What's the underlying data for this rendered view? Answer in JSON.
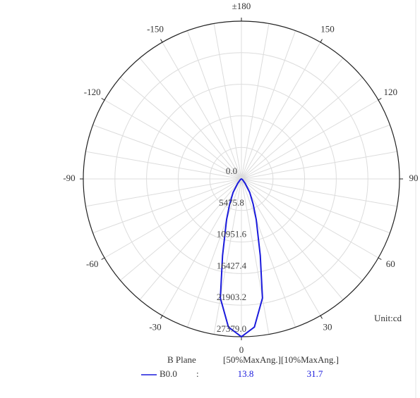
{
  "chart_data": {
    "type": "polar",
    "rlim": [
      0,
      27379
    ],
    "rticks": [
      {
        "value": 0,
        "label": "0.0"
      },
      5475.8,
      10951.6,
      16427.4,
      21903.2,
      {
        "value": 27379,
        "label": "27379.0"
      }
    ],
    "thetaticks": [
      0,
      30,
      60,
      90,
      120,
      150,
      {
        "value": 180,
        "label": "±180"
      },
      -150,
      -120,
      -90,
      -60,
      -30
    ],
    "series": [
      {
        "name": "B0.0",
        "color": "#1a1adc",
        "theta": [
          -90,
          -60,
          -40,
          -31.7,
          -25,
          -20,
          -13.8,
          -10,
          -5,
          0,
          5,
          10,
          13.8,
          20,
          25,
          31.7,
          40,
          60,
          90
        ],
        "values": [
          0,
          200,
          1000,
          2738,
          4800,
          7500,
          13690,
          21000,
          25800,
          27379,
          25800,
          21000,
          13690,
          7500,
          4800,
          2738,
          1000,
          200,
          0
        ]
      }
    ],
    "legend_header": [
      "B Plane",
      "[50%MaxAng.][10%MaxAng.]"
    ],
    "legend_separator": ":",
    "half_max_angle": 13.8,
    "tenth_max_angle": 31.7,
    "unit_label": "Unit:cd"
  }
}
